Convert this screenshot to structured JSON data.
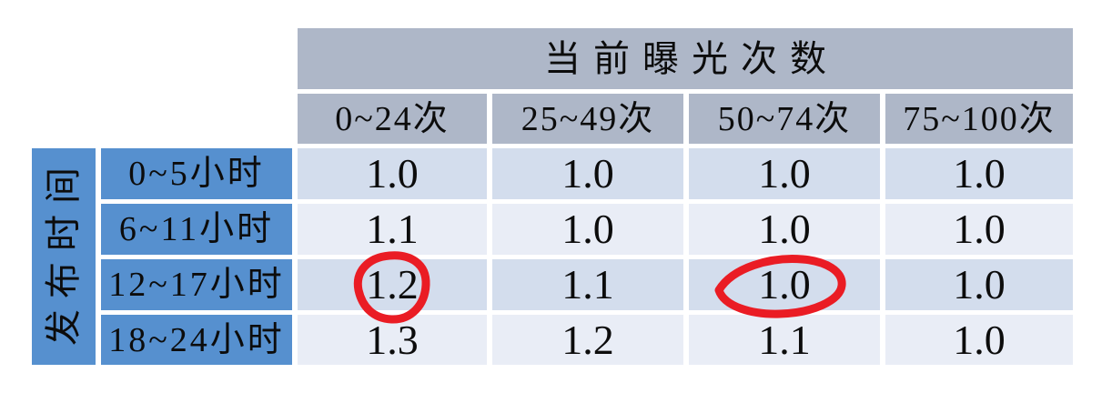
{
  "colors": {
    "header_fill": "#AEB7C8",
    "row_header_fill": "#5690CF",
    "band_dark": "#D3DDED",
    "band_light": "#E9EDF6",
    "text": "#0C0C0C",
    "annotation_red": "#EA1C24",
    "page_bg": "#FFFFFF"
  },
  "chart_data": {
    "type": "table",
    "title": "当前曝光次数",
    "column_group_label": "当前曝光次数",
    "row_group_label": "发布时间",
    "columns": [
      "0~24次",
      "25~49次",
      "50~74次",
      "75~100次"
    ],
    "rows": [
      "0~5小时",
      "6~11小时",
      "12~17小时",
      "18~24小时"
    ],
    "values": [
      [
        "1.0",
        "1.0",
        "1.0",
        "1.0"
      ],
      [
        "1.1",
        "1.0",
        "1.0",
        "1.0"
      ],
      [
        "1.2",
        "1.1",
        "1.0",
        "1.0"
      ],
      [
        "1.3",
        "1.2",
        "1.1",
        "1.0"
      ]
    ],
    "annotations": [
      {
        "mark": "hand-drawn-red-circle",
        "row": "12~17小时",
        "column": "0~24次",
        "value": "1.2"
      },
      {
        "mark": "hand-drawn-red-ellipse",
        "row": "12~17小时",
        "column": "50~74次",
        "value": "1.0"
      }
    ]
  }
}
